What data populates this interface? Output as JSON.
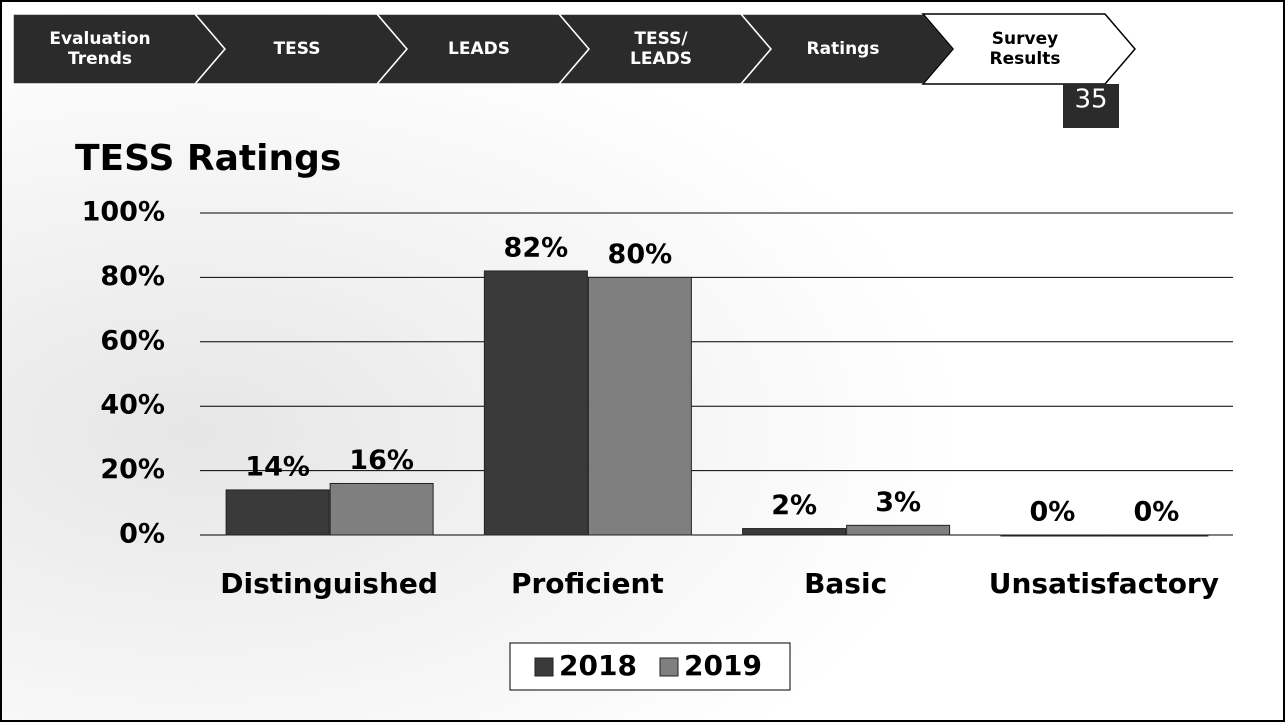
{
  "nav": [
    [
      "Evaluation",
      "Trends"
    ],
    [
      "TESS"
    ],
    [
      "LEADS"
    ],
    [
      "TESS/",
      "LEADS"
    ],
    [
      "Ratings"
    ],
    [
      "Survey",
      "Results"
    ]
  ],
  "nav_active": 5,
  "page_number": "35",
  "chart_data": {
    "type": "bar",
    "title": "TESS Ratings",
    "categories": [
      "Distinguished",
      "Proficient",
      "Basic",
      "Unsatisfactory"
    ],
    "series": [
      {
        "name": "2018",
        "color": "#3a3a3a",
        "values": [
          14,
          82,
          2,
          0
        ],
        "value_labels": [
          "14%",
          "82%",
          "2%",
          "0%"
        ]
      },
      {
        "name": "2019",
        "color": "#7f7f7f",
        "values": [
          16,
          80,
          3,
          0
        ],
        "value_labels": [
          "16%",
          "80%",
          "3%",
          "0%"
        ]
      }
    ],
    "ylim": [
      0,
      100
    ],
    "yticks": [
      {
        "value": 0,
        "label": "0%"
      },
      {
        "value": 20,
        "label": "20%"
      },
      {
        "value": 40,
        "label": "40%"
      },
      {
        "value": 60,
        "label": "60%"
      },
      {
        "value": 80,
        "label": "80%"
      },
      {
        "value": 100,
        "label": "100%"
      }
    ],
    "grid": true,
    "legend": "bottom"
  }
}
